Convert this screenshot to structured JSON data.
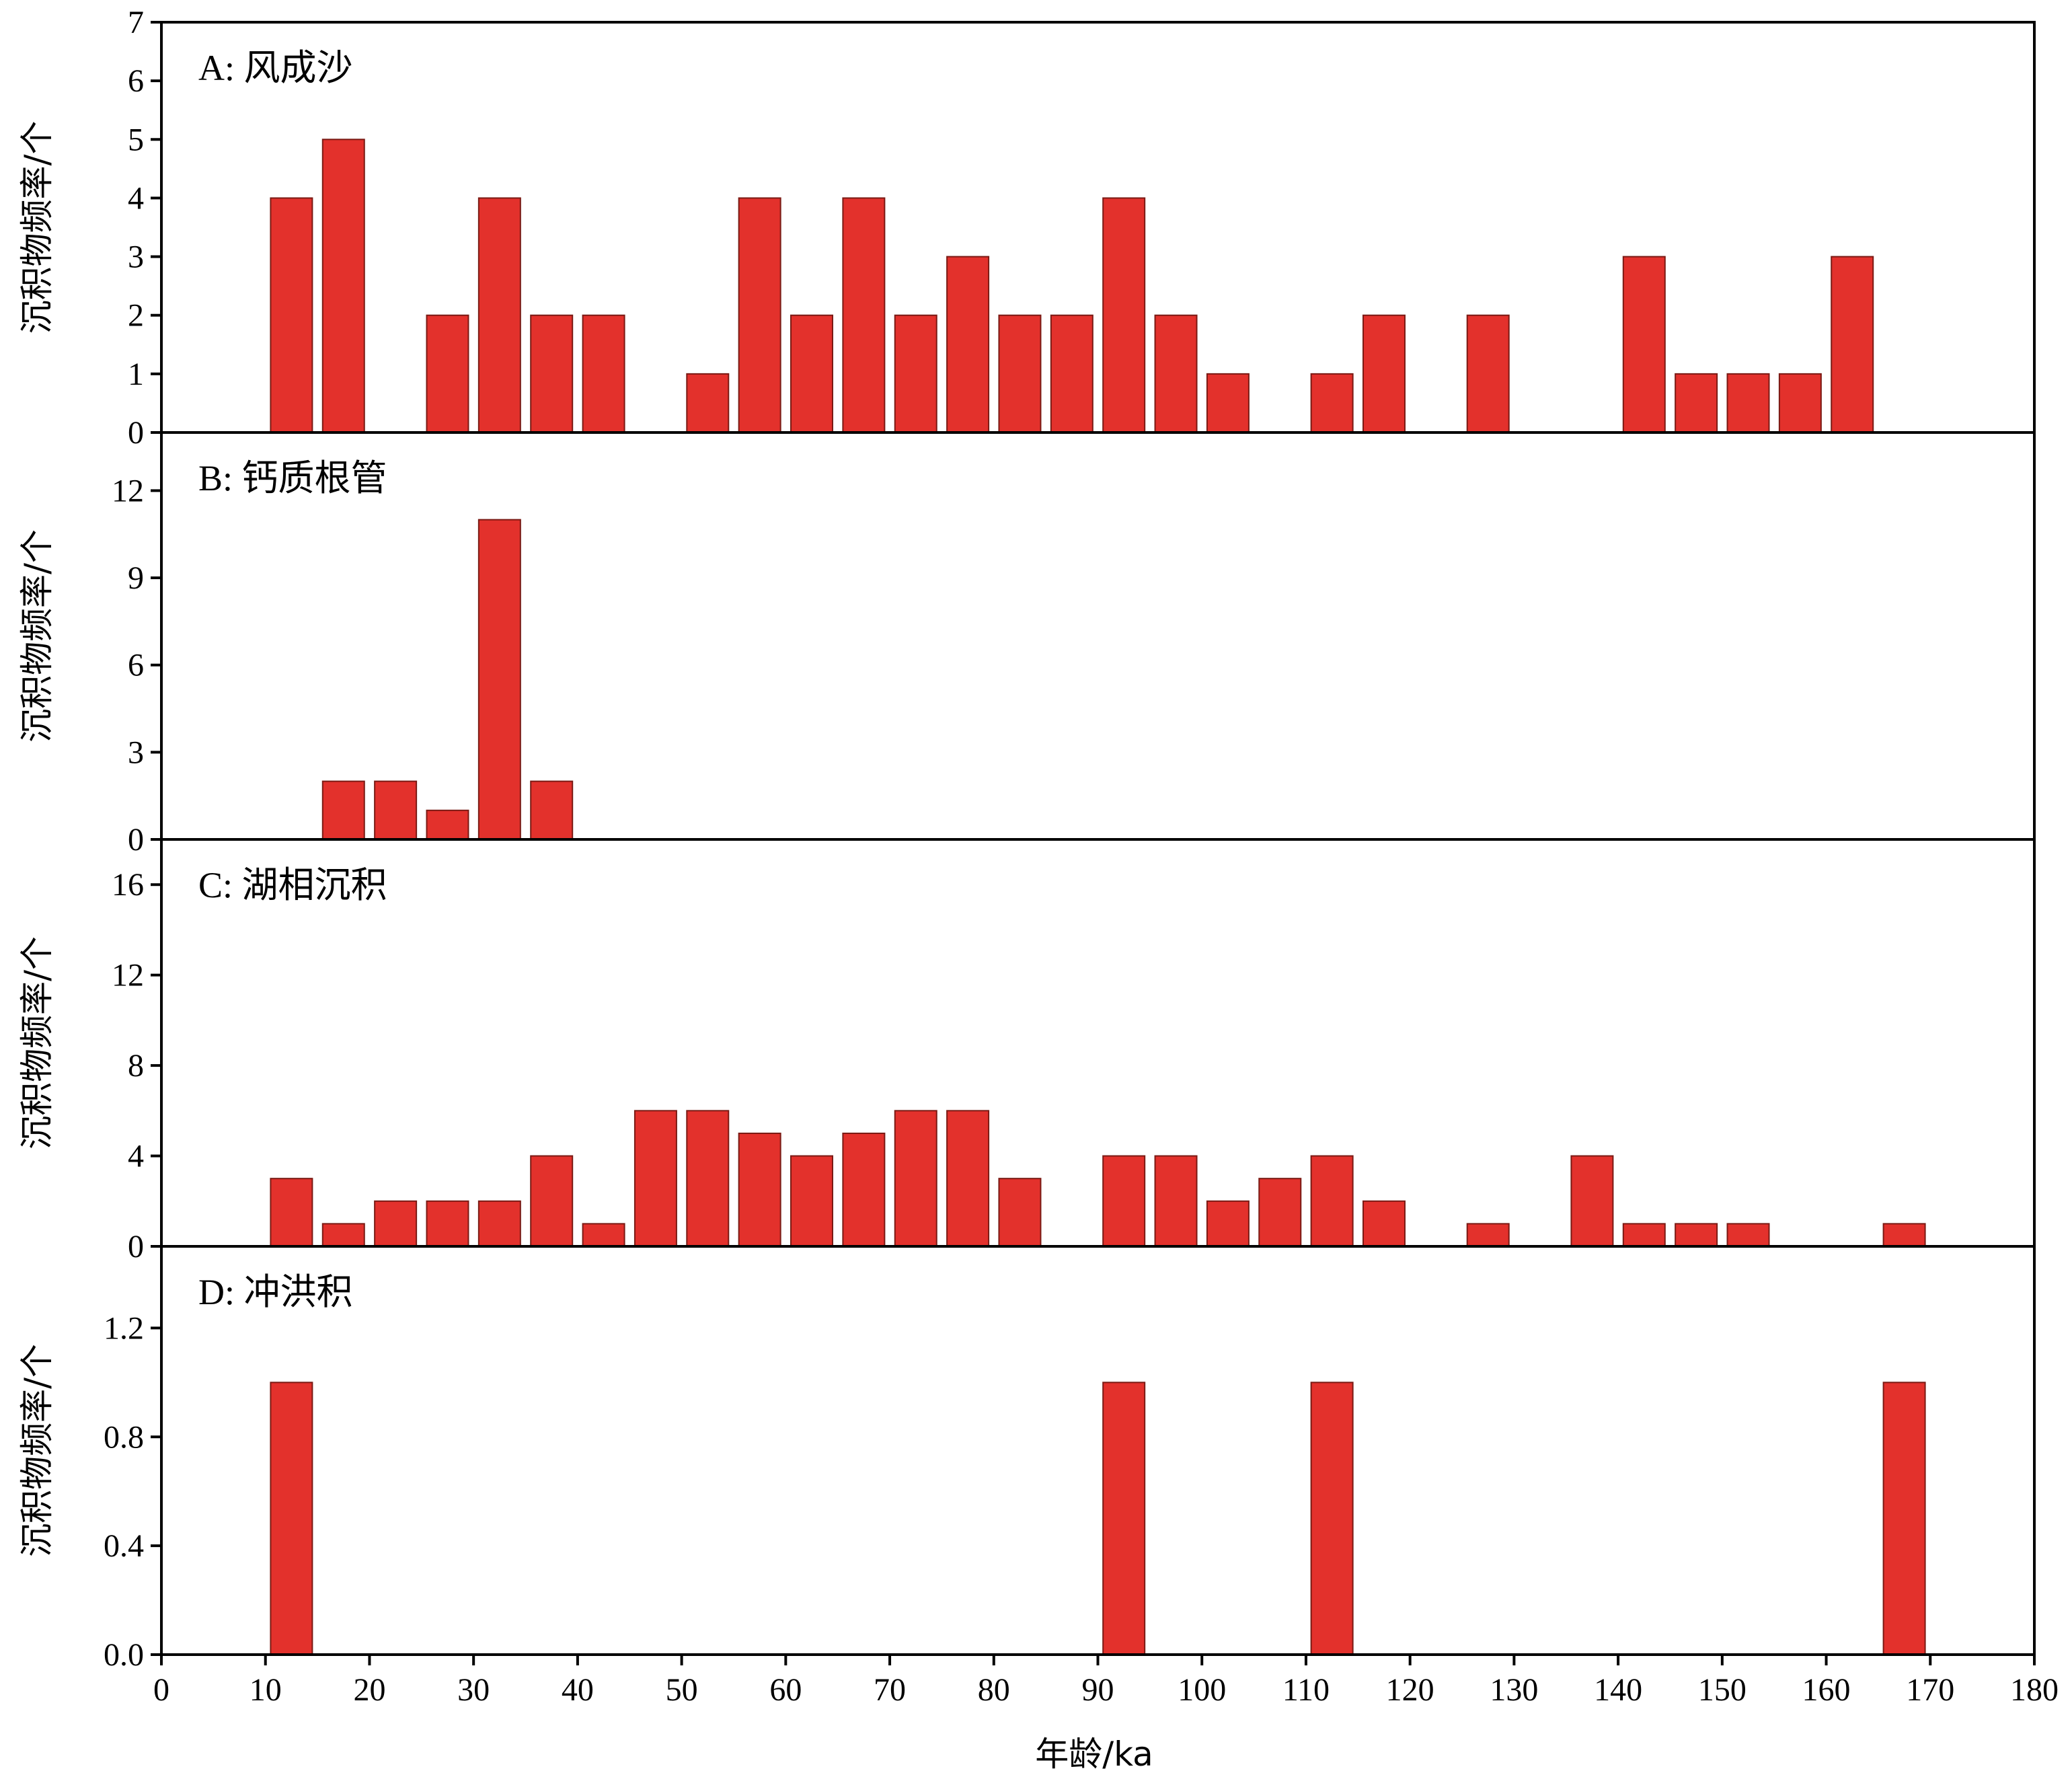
{
  "chart_data": {
    "type": "bar",
    "bar_color": "#e3312c",
    "x_categories": [
      12.5,
      17.5,
      22.5,
      27.5,
      32.5,
      37.5,
      42.5,
      47.5,
      52.5,
      57.5,
      62.5,
      67.5,
      72.5,
      77.5,
      82.5,
      87.5,
      92.5,
      97.5,
      102.5,
      107.5,
      112.5,
      117.5,
      122.5,
      127.5,
      132.5,
      137.5,
      142.5,
      147.5,
      152.5,
      157.5,
      162.5,
      167.5
    ],
    "bin_width": 5,
    "xlim": [
      0,
      180
    ],
    "xticks": [
      0,
      10,
      20,
      30,
      40,
      50,
      60,
      70,
      80,
      90,
      100,
      110,
      120,
      130,
      140,
      150,
      160,
      170,
      180
    ],
    "xtick_labels": [
      "0",
      "10",
      "20",
      "30",
      "40",
      "50",
      "60",
      "70",
      "80",
      "90",
      "100",
      "110",
      "120",
      "130",
      "140",
      "150",
      "160",
      "170",
      "180"
    ],
    "xlabel": "年龄/ka",
    "panels": [
      {
        "title": "A: 风成沙",
        "ylabel": "沉积物频率/个",
        "ylim": [
          0,
          7
        ],
        "yticks": [
          0,
          1,
          2,
          3,
          4,
          5,
          6,
          7
        ],
        "ytick_labels": [
          "0",
          "1",
          "2",
          "3",
          "4",
          "5",
          "6",
          "7"
        ],
        "values": [
          4,
          5,
          0,
          2,
          4,
          2,
          2,
          0,
          1,
          4,
          2,
          4,
          2,
          3,
          2,
          2,
          4,
          2,
          1,
          0,
          1,
          2,
          0,
          2,
          0,
          0,
          3,
          1,
          1,
          1,
          3,
          0
        ]
      },
      {
        "title": "B: 钙质根管",
        "ylabel": "沉积物频率/个",
        "ylim": [
          0,
          14
        ],
        "yticks": [
          0,
          3,
          6,
          9,
          12
        ],
        "ytick_labels": [
          "0",
          "3",
          "6",
          "9",
          "12"
        ],
        "values": [
          0,
          2,
          2,
          1,
          11,
          2,
          0,
          0,
          0,
          0,
          0,
          0,
          0,
          0,
          0,
          0,
          0,
          0,
          0,
          0,
          0,
          0,
          0,
          0,
          0,
          0,
          0,
          0,
          0,
          0,
          0,
          0
        ]
      },
      {
        "title": "C: 湖相沉积",
        "ylabel": "沉积物频率/个",
        "ylim": [
          0,
          18
        ],
        "yticks": [
          0,
          4,
          8,
          12,
          16
        ],
        "ytick_labels": [
          "0",
          "4",
          "8",
          "12",
          "16"
        ],
        "values": [
          3,
          1,
          2,
          2,
          2,
          4,
          1,
          6,
          6,
          5,
          4,
          5,
          6,
          6,
          3,
          0,
          4,
          4,
          2,
          3,
          4,
          2,
          0,
          1,
          0,
          4,
          1,
          1,
          1,
          0,
          0,
          1
        ]
      },
      {
        "title": "D: 冲洪积",
        "ylabel": "沉积物频率/个",
        "ylim": [
          0,
          1.5
        ],
        "yticks": [
          0,
          0.4,
          0.8,
          1.2
        ],
        "ytick_labels": [
          "0.0",
          "0.4",
          "0.8",
          "1.2"
        ],
        "values": [
          1,
          0,
          0,
          0,
          0,
          0,
          0,
          0,
          0,
          0,
          0,
          0,
          0,
          0,
          0,
          0,
          1,
          0,
          0,
          0,
          1,
          0,
          0,
          0,
          0,
          0,
          0,
          0,
          0,
          0,
          0,
          1
        ]
      }
    ]
  }
}
